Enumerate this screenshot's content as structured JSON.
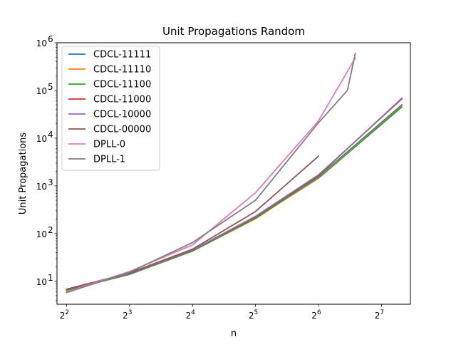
{
  "chart_data": {
    "type": "line",
    "title": "Unit Propagations Random",
    "xlabel": "n",
    "ylabel": "Unit Propagations",
    "xscale": "log2",
    "yscale": "log10",
    "xlim": [
      3.6,
      176
    ],
    "ylim": [
      3.3,
      1000000
    ],
    "xticks": [
      {
        "value": 4,
        "label": "2",
        "exp": "2"
      },
      {
        "value": 8,
        "label": "2",
        "exp": "3"
      },
      {
        "value": 16,
        "label": "2",
        "exp": "4"
      },
      {
        "value": 32,
        "label": "2",
        "exp": "5"
      },
      {
        "value": 64,
        "label": "2",
        "exp": "6"
      },
      {
        "value": 128,
        "label": "2",
        "exp": "7"
      }
    ],
    "yticks": [
      {
        "value": 10,
        "label": "10",
        "exp": "1"
      },
      {
        "value": 100,
        "label": "10",
        "exp": "2"
      },
      {
        "value": 1000,
        "label": "10",
        "exp": "3"
      },
      {
        "value": 10000,
        "label": "10",
        "exp": "4"
      },
      {
        "value": 100000,
        "label": "10",
        "exp": "5"
      },
      {
        "value": 1000000,
        "label": "10",
        "exp": "6"
      }
    ],
    "grid": false,
    "legend_position": "top-left",
    "series": [
      {
        "name": "CDCL-11111",
        "color": "#1f77b4",
        "x": [
          4,
          8,
          16,
          32,
          64,
          160
        ],
        "y": [
          6.5,
          14,
          43,
          210,
          1450,
          45000
        ]
      },
      {
        "name": "CDCL-11110",
        "color": "#ff7f0e",
        "x": [
          4,
          8,
          16,
          32,
          64,
          160
        ],
        "y": [
          6.5,
          14,
          43,
          205,
          1500,
          48000
        ]
      },
      {
        "name": "CDCL-11100",
        "color": "#2ca02c",
        "x": [
          4,
          8,
          16,
          32,
          64,
          160
        ],
        "y": [
          6.5,
          14,
          43,
          210,
          1550,
          50000
        ]
      },
      {
        "name": "CDCL-11000",
        "color": "#d62728",
        "x": [
          4,
          8,
          16,
          32,
          64,
          160
        ],
        "y": [
          6.8,
          14.5,
          45,
          225,
          1650,
          68000
        ]
      },
      {
        "name": "CDCL-10000",
        "color": "#9467bd",
        "x": [
          4,
          8,
          16,
          32,
          64,
          160
        ],
        "y": [
          6.8,
          14.5,
          45,
          230,
          1700,
          66000
        ]
      },
      {
        "name": "CDCL-00000",
        "color": "#8c564b",
        "x": [
          4,
          8,
          16,
          32,
          64
        ],
        "y": [
          6.8,
          15,
          47,
          290,
          4200
        ]
      },
      {
        "name": "DPLL-0",
        "color": "#e377c2",
        "x": [
          4,
          8,
          16,
          32,
          64,
          96
        ],
        "y": [
          6.0,
          16,
          58,
          720,
          23000,
          480000
        ]
      },
      {
        "name": "DPLL-1",
        "color": "#7f7f7f",
        "x": [
          4,
          8,
          16,
          32,
          64,
          88,
          96
        ],
        "y": [
          5.8,
          15.5,
          65,
          500,
          21000,
          100000,
          600000
        ]
      }
    ]
  }
}
